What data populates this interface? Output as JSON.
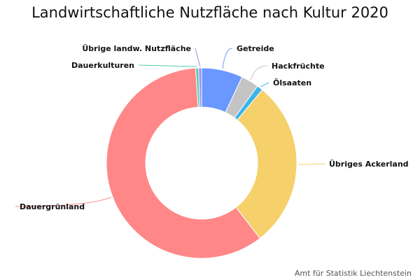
{
  "chart_data": {
    "type": "pie",
    "title": "Landwirtschaftliche Nutzfläche nach Kultur 2020",
    "categories": [
      "Getreide",
      "Hackfrüchte",
      "Ölsaaten",
      "Übriges Ackerland",
      "Dauergrünland",
      "Dauerkulturen",
      "Übrige landw. Nutzfläche"
    ],
    "values": [
      7.0,
      3.0,
      1.0,
      28.5,
      59.5,
      0.5,
      0.5
    ],
    "unit": "%",
    "colors": [
      "#6b98ff",
      "#c4c4c4",
      "#3bb4e8",
      "#f5d06b",
      "#ff8787",
      "#52cfa8",
      "#9b8cf2"
    ],
    "donut": true,
    "source": "Amt für Statistik Liechtenstein"
  }
}
